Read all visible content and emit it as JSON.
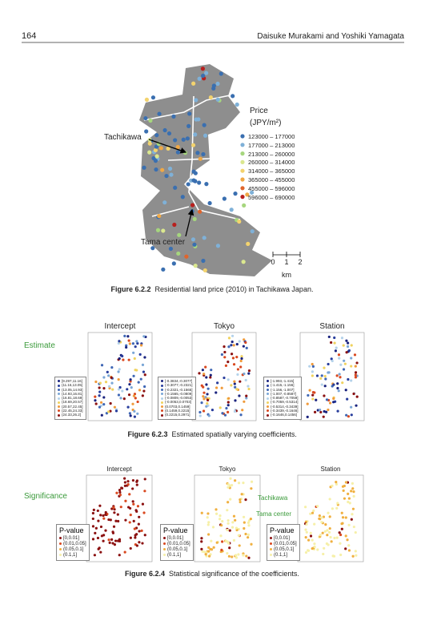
{
  "header": {
    "page_number": "164",
    "authors": "Daisuke Murakami and Yoshiki Yamagata"
  },
  "figures": [
    {
      "label": "Figure 6.2.2",
      "caption": "Residential land price (2010) in Tachikawa Japan.",
      "legend_title": "Price",
      "legend_unit": "(JPY/m²)",
      "legend_items": [
        "123000 – 177000",
        "177000 – 213000",
        "213000 – 260000",
        "260000 – 314000",
        "314000 – 365000",
        "365000 – 455000",
        "455000 – 596000",
        "596000 – 690000"
      ],
      "annotations": [
        "Tachikawa",
        "Tama center"
      ],
      "scale": {
        "ticks": [
          "0",
          "1",
          "2"
        ],
        "unit": "km"
      }
    },
    {
      "label": "Figure 6.2.3",
      "caption": "Estimated spatially varying coefficients.",
      "row_label": "Estimate",
      "panels": [
        {
          "title": "Intercept",
          "legend_items": [
            "[9.297,11.16]",
            "(11.16,13.05]",
            "(13.05,14.93]",
            "(14.93,16.81]",
            "(16.81,18.69]",
            "(18.69,20.57]",
            "(20.57,22.45]",
            "(22.45,24.33]",
            "(24.33,26.2]"
          ]
        },
        {
          "title": "Tokyo",
          "legend_items": [
            "[-0.3834,-0.3077]",
            "(-0.3077,-0.2321]",
            "(-0.2321,-0.1565]",
            "(-0.1565,-0.0809]",
            "(-0.0809,-0.0053]",
            "(-0.0053,0.0703]",
            "(0.0703,0.1459]",
            "(0.1459,0.2215]",
            "(0.2215,0.2971]"
          ]
        },
        {
          "title": "Station",
          "legend_items": [
            "[-1.993,-1.415]",
            "(-1.415,-1.156]",
            "(-1.156,-1.007]",
            "(-1.007,-0.8587]",
            "(-0.8587,-0.7059]",
            "(-0.7059,-0.5314]",
            "(-0.5314,-0.3439]",
            "(-0.3439,-0.1646]",
            "(-0.1646,0.1456]"
          ]
        }
      ]
    },
    {
      "label": "Figure 6.2.4",
      "caption": "Statistical significance of the coefficients.",
      "row_label": "Significance",
      "panels": [
        {
          "title": "Intercept",
          "legend_title": "P-value",
          "legend_items": [
            "[0,0.01]",
            "(0.01,0.05]",
            "(0.05,0.1]",
            "(0.1,1]"
          ]
        },
        {
          "title": "Tokyo",
          "legend_title": "P-value",
          "legend_items": [
            "[0,0.01]",
            "(0.01,0.05]",
            "(0.05,0.1]",
            "(0.1,1]"
          ]
        },
        {
          "title": "Station",
          "legend_title": "P-value",
          "legend_items": [
            "[0,0.01]",
            "(0.01,0.05]",
            "(0.05,0.1]",
            "(0.1,1]"
          ]
        }
      ],
      "annotations": [
        "Tachikawa",
        "Tama center"
      ]
    }
  ]
}
